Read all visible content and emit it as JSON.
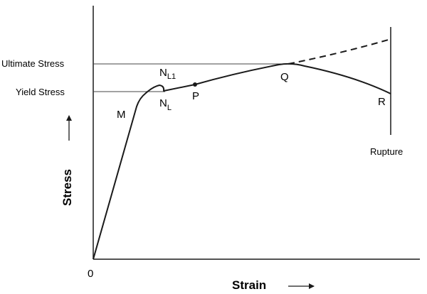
{
  "diagram": {
    "y_axis_title": "Stress",
    "x_axis_title": "Strain",
    "origin_label": "0",
    "ultimate_stress_label": "Ultimate Stress",
    "yield_stress_label": "Yield Stress",
    "rupture_label": "Rupture",
    "points": {
      "M": "M",
      "NL1_main": "N",
      "NL1_sub": "L1",
      "NL_main": "N",
      "NL_sub": "L",
      "P": "P",
      "Q": "Q",
      "R": "R"
    },
    "colors": {
      "line": "#1a1a1a",
      "reference_line": "#444444",
      "background": "#ffffff"
    }
  }
}
